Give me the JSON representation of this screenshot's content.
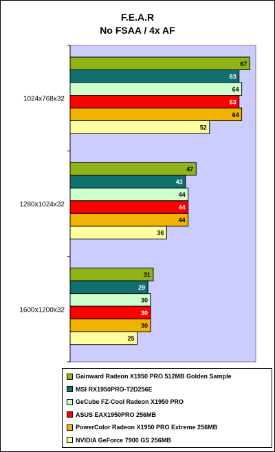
{
  "chart_data": {
    "type": "bar",
    "orientation": "horizontal",
    "title": "F.E.A.R",
    "subtitle": "No FSAA / 4x AF",
    "categories": [
      "1024x768x32",
      "1280x1024x32",
      "1600x1200x32"
    ],
    "xlim": [
      0,
      70
    ],
    "grid": false,
    "legend_position": "bottom",
    "series": [
      {
        "name": "Gainward Radeon X1950 PRO 512MB Golden Sample",
        "color": "#8fb318",
        "values": [
          67,
          47,
          31
        ]
      },
      {
        "name": "MSI RX1950PRO-T2D256E",
        "color": "#107070",
        "values": [
          63,
          43,
          29
        ]
      },
      {
        "name": "GeCube FZ-Cool Radeon X1950 PRO",
        "color": "#ccffcc",
        "values": [
          64,
          44,
          30
        ]
      },
      {
        "name": "ASUS EAX1950PRO 256MB",
        "color": "#ff0000",
        "values": [
          63,
          44,
          30
        ]
      },
      {
        "name": "PowerColor Radeon X1950 PRO Extreme 256MB",
        "color": "#f0b400",
        "values": [
          64,
          44,
          30
        ]
      },
      {
        "name": "NVIDIA GeForce 7900 GS 256MB",
        "color": "#ffffa0",
        "values": [
          52,
          36,
          25
        ]
      }
    ],
    "label_colors": [
      "#000000",
      "#ffffff",
      "#000000",
      "#ffffff",
      "#000000",
      "#000000"
    ]
  }
}
